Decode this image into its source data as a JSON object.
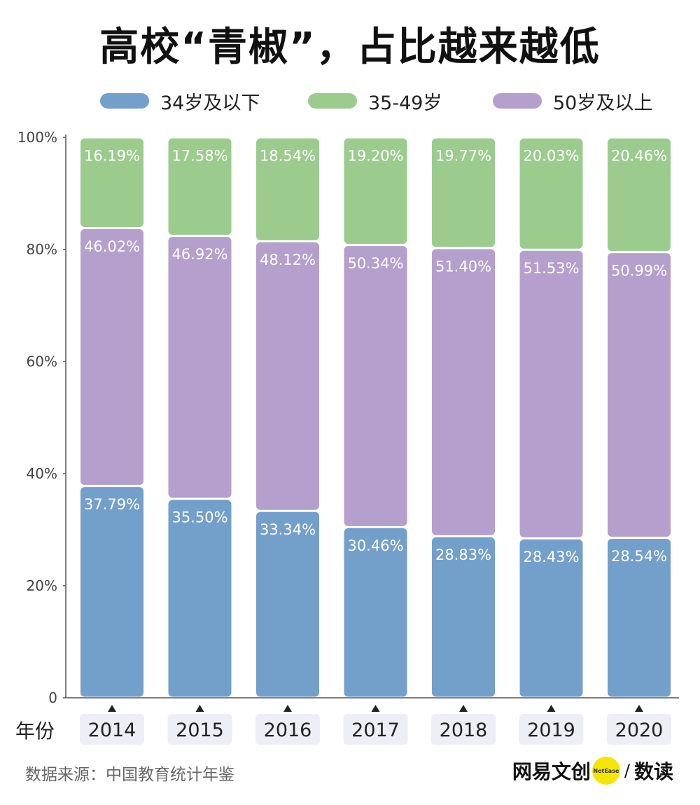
{
  "title": "高校“青椒”，占比越来越低",
  "legend": {
    "under34": "34岁及以下",
    "mid": "35-49岁",
    "over50": "50岁及以上"
  },
  "colors": {
    "under34": "#739fcb",
    "mid": "#9bcc8e",
    "over50": "#b59fcc",
    "axis": "#555555",
    "yearTag": "#eeeef6"
  },
  "xlabel": "年份",
  "source": "数据来源：中国教育统计年鉴",
  "brand": {
    "name": "网易文创",
    "logo_text": "NetEase",
    "slash": "/",
    "sub": "数读"
  },
  "chart_data": {
    "type": "bar",
    "stacked": true,
    "categories": [
      "2014",
      "2015",
      "2016",
      "2017",
      "2018",
      "2019",
      "2020"
    ],
    "series": [
      {
        "name": "34岁及以下",
        "values": [
          37.79,
          35.5,
          33.34,
          30.46,
          28.83,
          28.43,
          28.54
        ],
        "labels": [
          "37.79%",
          "35.50%",
          "33.34%",
          "30.46%",
          "28.83%",
          "28.43%",
          "28.54%"
        ]
      },
      {
        "name": "50岁及以上",
        "values": [
          46.02,
          46.92,
          48.12,
          50.34,
          51.4,
          51.53,
          50.99
        ],
        "labels": [
          "46.02%",
          "46.92%",
          "48.12%",
          "50.34%",
          "51.40%",
          "51.53%",
          "50.99%"
        ]
      },
      {
        "name": "35-49岁",
        "values": [
          16.19,
          17.58,
          18.54,
          19.2,
          19.77,
          20.03,
          20.46
        ],
        "labels": [
          "16.19%",
          "17.58%",
          "18.54%",
          "19.20%",
          "19.77%",
          "20.03%",
          "20.46%"
        ]
      }
    ],
    "yticks": [
      "0",
      "20%",
      "40%",
      "60%",
      "80%",
      "100%"
    ],
    "ylim": [
      0,
      100
    ],
    "grid": false,
    "legend_position": "top"
  }
}
